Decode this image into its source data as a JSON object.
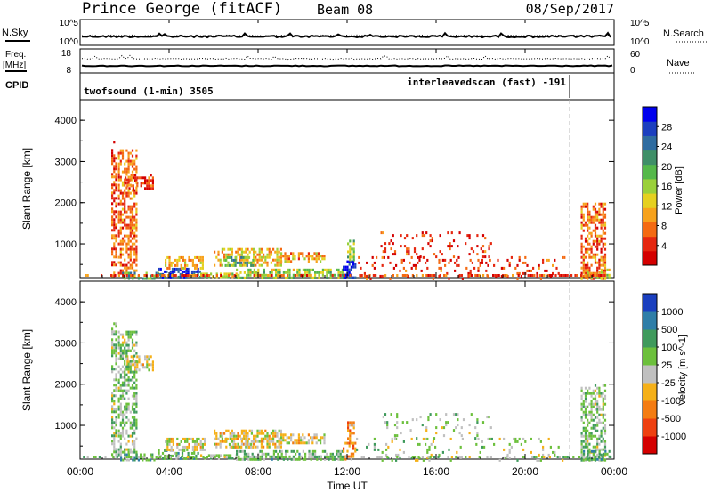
{
  "header": {
    "station": "Prince George (fitACF)",
    "beam": "Beam 08",
    "date": "08/Sep/2017"
  },
  "strips": {
    "nsky_label": "N.Sky",
    "nsky_ticks": [
      "10^5",
      "10^0"
    ],
    "nsearch_label": "N.Search",
    "nsearch_ticks": [
      "10^5",
      "10^0"
    ],
    "freq_label": "Freq.",
    "freq_unit": "[MHz]",
    "freq_ticks": [
      "18",
      "8"
    ],
    "nave_label": "Nave",
    "nave_ticks": [
      "60",
      "0"
    ],
    "cpid_label": "CPID",
    "cpid_modes": [
      {
        "name": "twofsound (1-min) 3505",
        "start_hour": 0
      },
      {
        "name": "interleavedscan (fast) -191",
        "start_hour": 22
      }
    ]
  },
  "x_axis": {
    "label": "Time UT",
    "ticks": [
      "00:00",
      "04:00",
      "08:00",
      "12:00",
      "16:00",
      "20:00",
      "00:00"
    ]
  },
  "chart_data": [
    {
      "type": "heatmap",
      "name": "power",
      "ylabel": "Slant Range [km]",
      "yticks": [
        "4000",
        "3000",
        "2000",
        "1000"
      ],
      "xlim": [
        0,
        24
      ],
      "ylim": [
        180,
        4500
      ],
      "colorbar_label": "Power [dB]",
      "colorbar_ticks": [
        "28",
        "24",
        "20",
        "16",
        "12",
        "8",
        "4"
      ],
      "colorbar_colors": [
        "#0000ee",
        "#1c3fbf",
        "#2f6ca0",
        "#3f8f68",
        "#55b84a",
        "#9ad03a",
        "#e5d020",
        "#f7a21c",
        "#f46a12",
        "#e52710",
        "#d40000"
      ],
      "features": [
        {
          "t0": 1.4,
          "t1": 1.6,
          "r0": 250,
          "r1": 3500,
          "level": 0.15
        },
        {
          "t0": 2.0,
          "t1": 3.3,
          "r0": 2350,
          "r1": 2700,
          "level": 0.1
        },
        {
          "t0": 1.7,
          "t1": 2.5,
          "r0": 300,
          "r1": 3300,
          "level": 0.2
        },
        {
          "t0": 1.8,
          "t1": 3.5,
          "r0": 180,
          "r1": 320,
          "level": 0.6
        },
        {
          "t0": 3.5,
          "t1": 5.4,
          "r0": 180,
          "r1": 420,
          "level": 0.85
        },
        {
          "t0": 3.8,
          "t1": 5.6,
          "r0": 400,
          "r1": 700,
          "level": 0.3
        },
        {
          "t0": 5.4,
          "t1": 7.0,
          "r0": 180,
          "r1": 300,
          "level": 0.45
        },
        {
          "t0": 6.0,
          "t1": 9.0,
          "r0": 450,
          "r1": 900,
          "level": 0.35
        },
        {
          "t0": 6.5,
          "t1": 7.8,
          "r0": 450,
          "r1": 700,
          "level": 0.65
        },
        {
          "t0": 9.0,
          "t1": 11.0,
          "r0": 550,
          "r1": 800,
          "level": 0.3
        },
        {
          "t0": 7.0,
          "t1": 11.8,
          "r0": 180,
          "r1": 400,
          "level": 0.5
        },
        {
          "t0": 11.8,
          "t1": 12.4,
          "r0": 180,
          "r1": 600,
          "level": 0.95
        },
        {
          "t0": 12.0,
          "t1": 12.3,
          "r0": 600,
          "r1": 1100,
          "level": 0.5
        },
        {
          "t0": 12.4,
          "t1": 21.8,
          "r0": 180,
          "r1": 700,
          "level": 0.1
        },
        {
          "t0": 13.5,
          "t1": 18.5,
          "r0": 700,
          "r1": 1300,
          "level": 0.08
        },
        {
          "t0": 22.5,
          "t1": 23.6,
          "r0": 180,
          "r1": 2000,
          "level": 0.2
        },
        {
          "t0": 22.6,
          "t1": 23.8,
          "r0": 180,
          "r1": 400,
          "level": 0.4
        }
      ]
    },
    {
      "type": "heatmap",
      "name": "velocity",
      "ylabel": "Slant Range [km]",
      "yticks": [
        "4000",
        "3000",
        "2000",
        "1000"
      ],
      "xlim": [
        0,
        24
      ],
      "ylim": [
        180,
        4500
      ],
      "colorbar_label": "Velocity [m s^-1]",
      "colorbar_ticks": [
        "1000",
        "500",
        "100",
        "25",
        "-25",
        "-100",
        "-500",
        "-1000"
      ],
      "colorbar_colors": [
        "#1a3fbf",
        "#2f7ea8",
        "#3f9a5c",
        "#6cc03c",
        "#c0c0c0",
        "#f5b018",
        "#f47c12",
        "#ee4010",
        "#d40000"
      ],
      "features": [
        {
          "t0": 1.4,
          "t1": 1.6,
          "r0": 250,
          "r1": 3500,
          "level": 0.6
        },
        {
          "t0": 2.0,
          "t1": 3.3,
          "r0": 2350,
          "r1": 2700,
          "level": 0.45
        },
        {
          "t0": 1.7,
          "t1": 2.5,
          "r0": 300,
          "r1": 3300,
          "level": 0.6
        },
        {
          "t0": 1.8,
          "t1": 3.5,
          "r0": 180,
          "r1": 320,
          "level": 0.7
        },
        {
          "t0": 3.5,
          "t1": 5.4,
          "r0": 180,
          "r1": 420,
          "level": 0.7
        },
        {
          "t0": 3.8,
          "t1": 5.6,
          "r0": 400,
          "r1": 700,
          "level": 0.45
        },
        {
          "t0": 5.4,
          "t1": 7.0,
          "r0": 180,
          "r1": 300,
          "level": 0.6
        },
        {
          "t0": 6.0,
          "t1": 9.0,
          "r0": 450,
          "r1": 900,
          "level": 0.45
        },
        {
          "t0": 6.5,
          "t1": 7.8,
          "r0": 450,
          "r1": 700,
          "level": 0.45
        },
        {
          "t0": 9.0,
          "t1": 11.0,
          "r0": 550,
          "r1": 800,
          "level": 0.45
        },
        {
          "t0": 7.0,
          "t1": 11.8,
          "r0": 180,
          "r1": 400,
          "level": 0.65
        },
        {
          "t0": 11.8,
          "t1": 12.4,
          "r0": 180,
          "r1": 600,
          "level": 0.3
        },
        {
          "t0": 12.0,
          "t1": 12.3,
          "r0": 600,
          "r1": 1100,
          "level": 0.3
        },
        {
          "t0": 12.4,
          "t1": 21.8,
          "r0": 180,
          "r1": 700,
          "level": 0.55
        },
        {
          "t0": 13.5,
          "t1": 18.5,
          "r0": 700,
          "r1": 1300,
          "level": 0.55
        },
        {
          "t0": 22.5,
          "t1": 23.6,
          "r0": 180,
          "r1": 2000,
          "level": 0.6
        },
        {
          "t0": 22.6,
          "t1": 23.8,
          "r0": 180,
          "r1": 400,
          "level": 0.7
        }
      ]
    }
  ]
}
